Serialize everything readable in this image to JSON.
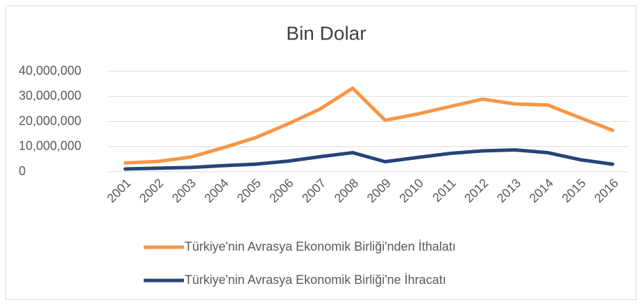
{
  "chart_data": {
    "type": "line",
    "title": "Bin Dolar",
    "categories": [
      "2001",
      "2002",
      "2003",
      "2004",
      "2005",
      "2006",
      "2007",
      "2008",
      "2009",
      "2010",
      "2011",
      "2012",
      "2013",
      "2014",
      "2015",
      "2016"
    ],
    "series": [
      {
        "name": "Türkiye'nin Avrasya Ekonomik Birliği'nden İthalatı",
        "color": "#f79646",
        "values": [
          3500000,
          4100000,
          5800000,
          9500000,
          13500000,
          19000000,
          25000000,
          33300000,
          20500000,
          23000000,
          26000000,
          28900000,
          27000000,
          26600000,
          21500000,
          16500000
        ]
      },
      {
        "name": "Türkiye'nin Avrasya Ekonomik Birliği'ne İhracatı",
        "color": "#264478",
        "values": [
          1100000,
          1400000,
          1700000,
          2400000,
          3000000,
          4200000,
          6000000,
          7600000,
          4000000,
          5700000,
          7300000,
          8300000,
          8700000,
          7600000,
          4800000,
          3000000
        ]
      }
    ],
    "ylim": [
      0,
      40000000
    ],
    "yticks": [
      0,
      {
        "value": 10000000,
        "label": "10,000,000"
      },
      {
        "value": 20000000,
        "label": "20,000,000"
      },
      {
        "value": 30000000,
        "label": "30,000,000"
      },
      {
        "value": 40000000,
        "label": "40,000,000"
      }
    ],
    "grid": true
  }
}
